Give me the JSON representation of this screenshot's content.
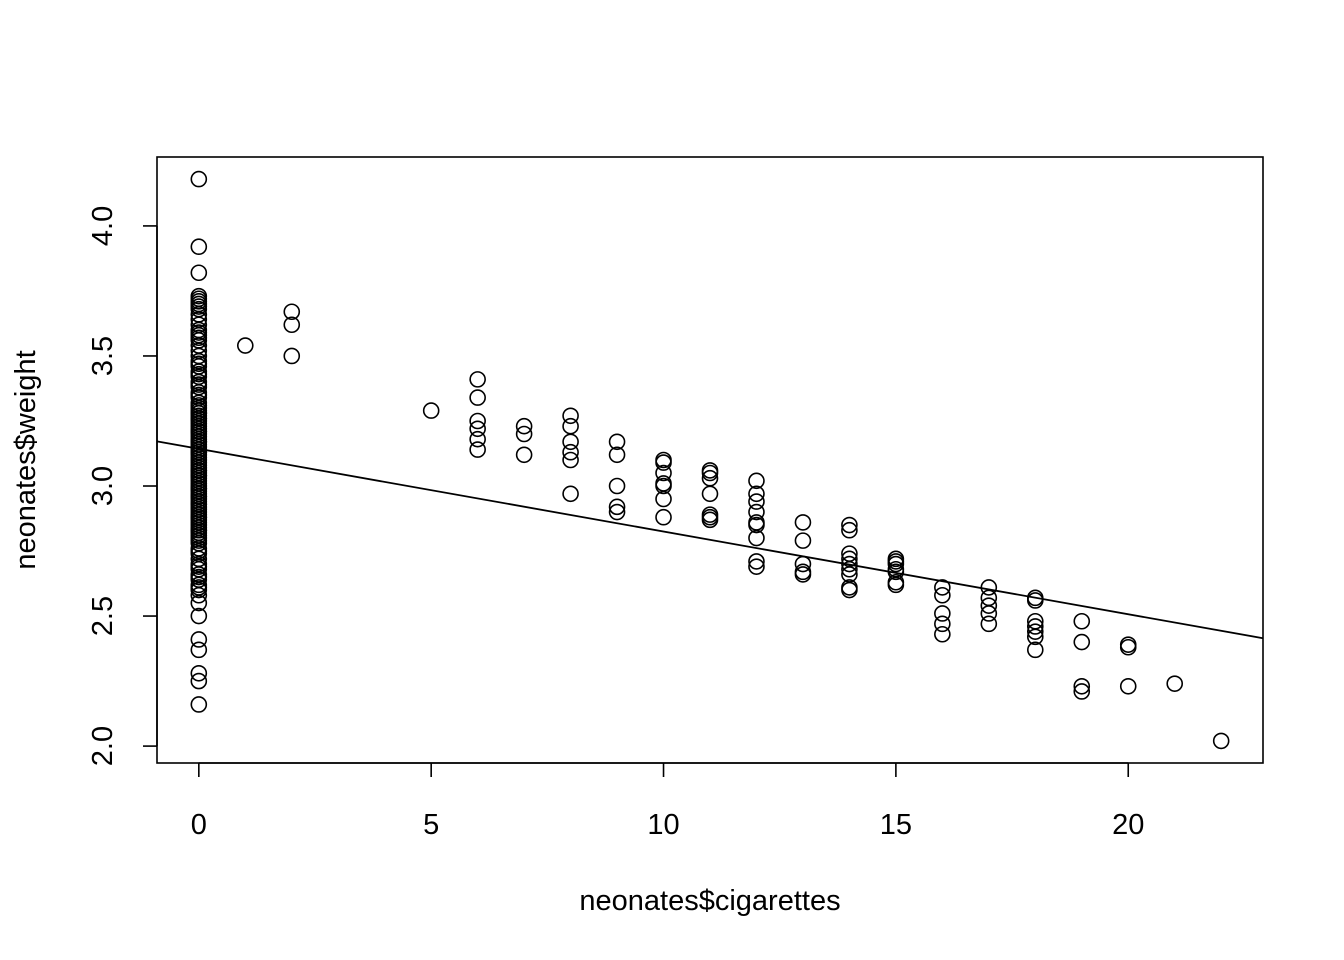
{
  "chart_data": {
    "type": "scatter",
    "title": "",
    "xlabel": "neonates$cigarettes",
    "ylabel": "neonates$weight",
    "xlim": [
      -0.9,
      22.9
    ],
    "ylim": [
      1.935,
      4.265
    ],
    "x_ticks": [
      0,
      5,
      10,
      15,
      20
    ],
    "x_tick_labels": [
      "0",
      "5",
      "10",
      "15",
      "20"
    ],
    "y_ticks": [
      2.0,
      2.5,
      3.0,
      3.5,
      4.0
    ],
    "y_tick_labels": [
      "2.0",
      "2.5",
      "3.0",
      "3.5",
      "4.0"
    ],
    "grid": false,
    "legend": "none",
    "marker": "open-circle",
    "color": "#000000",
    "regression_line": {
      "intercept": 3.143,
      "slope": -0.0318
    },
    "x": [
      0,
      0,
      0,
      0,
      0,
      0,
      0,
      0,
      0,
      0,
      0,
      0,
      0,
      0,
      0,
      0,
      0,
      0,
      0,
      0,
      0,
      0,
      0,
      0,
      0,
      0,
      0,
      0,
      0,
      0,
      0,
      0,
      0,
      0,
      0,
      0,
      0,
      0,
      0,
      0,
      0,
      0,
      0,
      0,
      0,
      0,
      0,
      0,
      0,
      0,
      0,
      0,
      0,
      0,
      0,
      0,
      0,
      0,
      0,
      0,
      0,
      0,
      0,
      0,
      0,
      0,
      0,
      0,
      0,
      0,
      0,
      0,
      0,
      0,
      0,
      0,
      0,
      0,
      0,
      0,
      0,
      0,
      0,
      0,
      0,
      0,
      0,
      0,
      0,
      0,
      0,
      0,
      0,
      0,
      0,
      0,
      0,
      0,
      0,
      0,
      0,
      0,
      0,
      0,
      0,
      0,
      0,
      0,
      0,
      0,
      0,
      0,
      0,
      0,
      0,
      0,
      0,
      0,
      0,
      0,
      1,
      2,
      2,
      2,
      5,
      6,
      6,
      6,
      6,
      6,
      6,
      7,
      7,
      7,
      8,
      8,
      8,
      8,
      8,
      8,
      9,
      9,
      9,
      9,
      9,
      10,
      10,
      10,
      10,
      10,
      10,
      10,
      11,
      11,
      11,
      11,
      11,
      11,
      11,
      12,
      12,
      12,
      12,
      12,
      12,
      12,
      12,
      12,
      13,
      13,
      13,
      13,
      13,
      14,
      14,
      14,
      14,
      14,
      14,
      14,
      14,
      14,
      15,
      15,
      15,
      15,
      15,
      15,
      15,
      16,
      16,
      16,
      16,
      16,
      17,
      17,
      17,
      17,
      17,
      18,
      18,
      18,
      18,
      18,
      18,
      18,
      19,
      19,
      19,
      19,
      20,
      20,
      20,
      21,
      22
    ],
    "y": [
      4.18,
      3.92,
      3.82,
      3.73,
      3.72,
      3.7,
      3.68,
      3.66,
      3.64,
      3.62,
      3.6,
      3.58,
      3.56,
      3.54,
      3.52,
      3.5,
      3.48,
      3.46,
      3.44,
      3.42,
      3.4,
      3.38,
      3.36,
      3.34,
      3.32,
      3.3,
      3.29,
      3.28,
      3.27,
      3.26,
      3.25,
      3.24,
      3.23,
      3.22,
      3.21,
      3.2,
      3.19,
      3.18,
      3.17,
      3.16,
      3.15,
      3.14,
      3.13,
      3.12,
      3.11,
      3.1,
      3.09,
      3.08,
      3.07,
      3.06,
      3.05,
      3.04,
      3.03,
      3.02,
      3.01,
      3.0,
      2.99,
      2.98,
      2.97,
      2.96,
      2.95,
      2.94,
      2.93,
      2.92,
      2.91,
      2.9,
      2.89,
      2.88,
      2.87,
      2.86,
      2.85,
      2.84,
      2.83,
      2.82,
      2.81,
      2.8,
      2.78,
      2.76,
      2.74,
      2.72,
      2.7,
      2.68,
      2.66,
      2.64,
      2.62,
      2.6,
      2.58,
      2.55,
      2.5,
      2.41,
      2.37,
      2.28,
      2.25,
      2.16,
      3.71,
      3.57,
      3.43,
      3.35,
      3.31,
      3.26,
      3.21,
      3.13,
      3.06,
      2.99,
      2.93,
      2.88,
      2.83,
      2.79,
      2.75,
      2.69,
      2.65,
      2.61,
      3.69,
      3.59,
      3.47,
      3.39,
      3.28,
      3.17,
      3.04,
      2.96,
      3.54,
      3.67,
      3.62,
      3.5,
      3.29,
      3.41,
      3.34,
      3.25,
      3.22,
      3.18,
      3.14,
      3.23,
      3.2,
      3.12,
      3.27,
      3.23,
      3.17,
      3.13,
      3.1,
      2.97,
      3.17,
      3.12,
      3.0,
      2.92,
      2.9,
      3.1,
      3.09,
      3.05,
      3.01,
      3.0,
      2.95,
      2.88,
      3.06,
      3.05,
      3.03,
      2.97,
      2.89,
      2.88,
      2.87,
      3.02,
      2.97,
      2.94,
      2.9,
      2.86,
      2.85,
      2.8,
      2.71,
      2.69,
      2.86,
      2.79,
      2.7,
      2.67,
      2.66,
      2.85,
      2.83,
      2.74,
      2.72,
      2.7,
      2.68,
      2.66,
      2.61,
      2.6,
      2.72,
      2.71,
      2.7,
      2.68,
      2.67,
      2.63,
      2.62,
      2.61,
      2.58,
      2.51,
      2.47,
      2.43,
      2.61,
      2.57,
      2.54,
      2.51,
      2.47,
      2.57,
      2.56,
      2.48,
      2.46,
      2.44,
      2.42,
      2.37,
      2.48,
      2.4,
      2.23,
      2.21,
      2.39,
      2.38,
      2.23,
      2.24,
      2.02
    ]
  }
}
